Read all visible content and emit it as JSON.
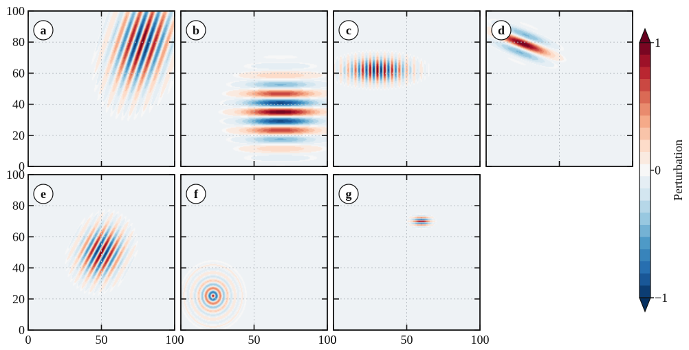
{
  "chart_data": {
    "type": "heatmap",
    "layout": "2x4 grid of filled-contour panels, bottom-right slot empty, shared vertical colorbar on right",
    "x_range": [
      0,
      100
    ],
    "y_range": [
      0,
      100
    ],
    "x_ticks": [
      "0",
      "50",
      "100"
    ],
    "y_ticks": [
      "0",
      "20",
      "40",
      "60",
      "80",
      "100"
    ],
    "grid": "dotted gray at ticks",
    "colormap": "diverging red-blue (RdBu_r), discrete levels",
    "colors": {
      "negative": "#053061",
      "zero": "#f7f7f7",
      "positive": "#67001f",
      "background": "#eef2f5",
      "frame": "#111111"
    },
    "panels": [
      {
        "label": "a",
        "pattern": "wave packet",
        "center": [
          78,
          80
        ],
        "wave_direction_deg": -20,
        "wavelength": 8,
        "sigma_along": 12,
        "sigma_across": 20,
        "amplitude": 1.0
      },
      {
        "label": "b",
        "pattern": "wave packet",
        "center": [
          68,
          35
        ],
        "wave_direction_deg": 90,
        "wavelength": 12,
        "sigma_along": 14,
        "sigma_across": 16,
        "amplitude": 1.0
      },
      {
        "label": "c",
        "pattern": "wave packet",
        "center": [
          30,
          62
        ],
        "wave_direction_deg": 0,
        "wavelength": 5,
        "sigma_along": 14,
        "sigma_across": 5,
        "amplitude": 1.0
      },
      {
        "label": "d",
        "pattern": "wave packet",
        "center": [
          25,
          79
        ],
        "wave_direction_deg": 70,
        "wavelength": 14,
        "sigma_along": 5,
        "sigma_across": 12,
        "amplitude": 1.0
      },
      {
        "label": "e",
        "pattern": "wave packet",
        "center": [
          50,
          50
        ],
        "wave_direction_deg": -30,
        "wavelength": 6,
        "sigma_along": 9,
        "sigma_across": 11,
        "amplitude": 1.0
      },
      {
        "label": "f",
        "pattern": "ring",
        "center": [
          22,
          22
        ],
        "wavelength": 5,
        "amplitude": 1.0
      },
      {
        "label": "g",
        "pattern": "wave packet",
        "center": [
          60,
          70
        ],
        "wave_direction_deg": 90,
        "wavelength": 2.5,
        "sigma_along": 2,
        "sigma_across": 4,
        "amplitude": 1.0
      }
    ],
    "colorbar": {
      "label": "Perturbation",
      "ticks": [
        "1",
        "0",
        "−1"
      ],
      "range": [
        -1,
        1
      ],
      "levels": 21,
      "extend": "both"
    }
  }
}
